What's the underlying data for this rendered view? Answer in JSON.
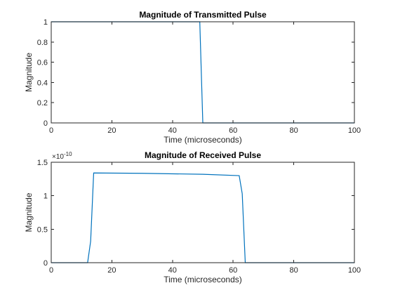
{
  "chart_data": [
    {
      "type": "line",
      "title": "Magnitude of Transmitted Pulse",
      "xlabel": "Time (microseconds)",
      "ylabel": "Magnitude",
      "xlim": [
        0,
        100
      ],
      "ylim": [
        0,
        1
      ],
      "xticks": [
        0,
        20,
        40,
        60,
        80,
        100
      ],
      "xticklabels": [
        "0",
        "20",
        "40",
        "60",
        "80",
        "100"
      ],
      "yticks": [
        0,
        0.2,
        0.4,
        0.6,
        0.8,
        1
      ],
      "yticklabels": [
        "0",
        "0.2",
        "0.4",
        "0.6",
        "0.8",
        "1"
      ],
      "exponent_label": "",
      "grid": false,
      "color": "#0072BD",
      "x": [
        0,
        49,
        50,
        100
      ],
      "y": [
        1,
        1,
        0,
        0
      ]
    },
    {
      "type": "line",
      "title": "Magnitude of Received Pulse",
      "xlabel": "Time (microseconds)",
      "ylabel": "Magnitude",
      "xlim": [
        0,
        100
      ],
      "ylim": [
        0,
        1.5e-10
      ],
      "xticks": [
        0,
        20,
        40,
        60,
        80,
        100
      ],
      "xticklabels": [
        "0",
        "20",
        "40",
        "60",
        "80",
        "100"
      ],
      "yticks": [
        0,
        5e-11,
        1e-10,
        1.5e-10
      ],
      "yticklabels": [
        "0",
        "0.5",
        "1",
        "1.5"
      ],
      "exponent_label": "×10",
      "exponent_power": "-10",
      "grid": false,
      "color": "#0072BD",
      "x": [
        0,
        12,
        13,
        14,
        30,
        50,
        62,
        63,
        64,
        100
      ],
      "y": [
        0,
        0,
        3.2e-11,
        1.34e-10,
        1.335e-10,
        1.32e-10,
        1.3e-10,
        1.03e-10,
        0,
        0
      ]
    }
  ]
}
